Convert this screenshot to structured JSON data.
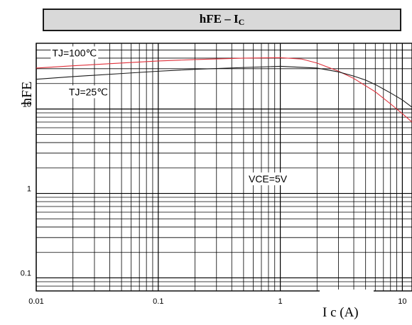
{
  "title": {
    "main": "hFE – I",
    "sub": "C"
  },
  "chart_data": {
    "type": "line",
    "x_scale": "log",
    "y_scale": "log",
    "xlim": [
      0.01,
      12
    ],
    "ylim": [
      0.07,
      60
    ],
    "grid": true,
    "xlabel": "I c (A)",
    "ylabel": "hFE",
    "x_ticks": [
      {
        "value": 0.01,
        "label": "0.01"
      },
      {
        "value": 0.1,
        "label": "0.1"
      },
      {
        "value": 1,
        "label": "1"
      },
      {
        "value": 10,
        "label": "10"
      }
    ],
    "y_ticks": [
      {
        "value": 0.1,
        "label": "0.1"
      },
      {
        "value": 1,
        "label": "1"
      },
      {
        "value": 10,
        "label": "10"
      }
    ],
    "series": [
      {
        "name": "TJ=100℃",
        "color": "#e0303a",
        "x": [
          0.01,
          0.02,
          0.05,
          0.1,
          0.2,
          0.5,
          1.0,
          1.5,
          2.0,
          3.0,
          4.0,
          6.0,
          8.0,
          10.0,
          12.0
        ],
        "y": [
          30.5,
          32.5,
          35,
          37,
          38.5,
          40,
          40.5,
          39,
          35,
          28,
          23,
          16,
          11.5,
          8.8,
          7.0
        ]
      },
      {
        "name": "TJ=25℃",
        "color": "#1a1a1a",
        "x": [
          0.01,
          0.02,
          0.05,
          0.1,
          0.2,
          0.5,
          1.0,
          2.0,
          3.0,
          4.0,
          5.0,
          6.0,
          8.0,
          10.0,
          12.0
        ],
        "y": [
          22.5,
          24.2,
          26.3,
          28,
          29.5,
          31,
          32,
          30.5,
          27.5,
          24.5,
          22,
          19.5,
          15.5,
          12.8,
          10.5
        ]
      }
    ],
    "annotations": [
      {
        "text": "TJ=100℃",
        "x": 0.0135,
        "y": 42
      },
      {
        "text": "TJ=25℃",
        "x": 0.0185,
        "y": 14.5
      },
      {
        "text": "VCE=5V",
        "x": 0.55,
        "y": 1.35
      }
    ]
  }
}
